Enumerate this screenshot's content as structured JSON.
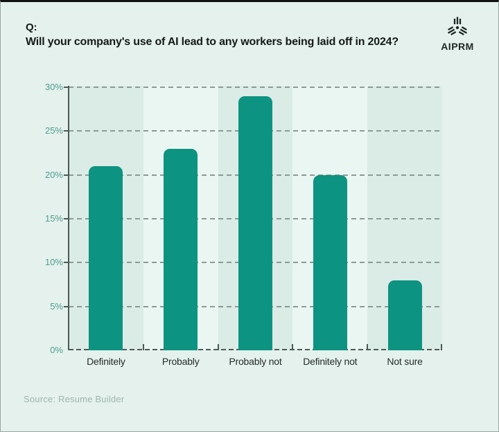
{
  "header": {
    "q_label": "Q:",
    "title": "Will your company's use of AI lead to any workers being laid off in 2024?"
  },
  "logo": {
    "text": "AIPRM",
    "icon": "aiprm-emblem-icon"
  },
  "source": {
    "text": "Source: Resume Builder"
  },
  "colors": {
    "page_background": "#e5f1ec",
    "bar": "#0d9381",
    "band_dark": "#dbebe6",
    "band_light": "#eaf6f1",
    "gridline": "#8b9a96",
    "axis": "#4d5955",
    "y_label": "#4d9e90",
    "x_label": "#232d2a",
    "title_text": "#141a18",
    "source_text": "#9eb5af"
  },
  "chart_data": {
    "type": "bar",
    "title": "Will your company's use of AI lead to any workers being laid off in 2024?",
    "categories": [
      "Definitely",
      "Probably",
      "Probably not",
      "Definitely not",
      "Not sure"
    ],
    "values": [
      21,
      23,
      29,
      20,
      8
    ],
    "unit": "%",
    "xlabel": "",
    "ylabel": "",
    "ylim": [
      0,
      30
    ],
    "y_tick_step": 5,
    "y_tick_labels": [
      "0%",
      "5%",
      "10%",
      "15%",
      "20%",
      "25%",
      "30%"
    ],
    "grid": "horizontal-dashed",
    "legend": "none",
    "bar_color": "#0d9381",
    "column_band_colors": [
      "#dbebe6",
      "#eaf6f1"
    ]
  }
}
